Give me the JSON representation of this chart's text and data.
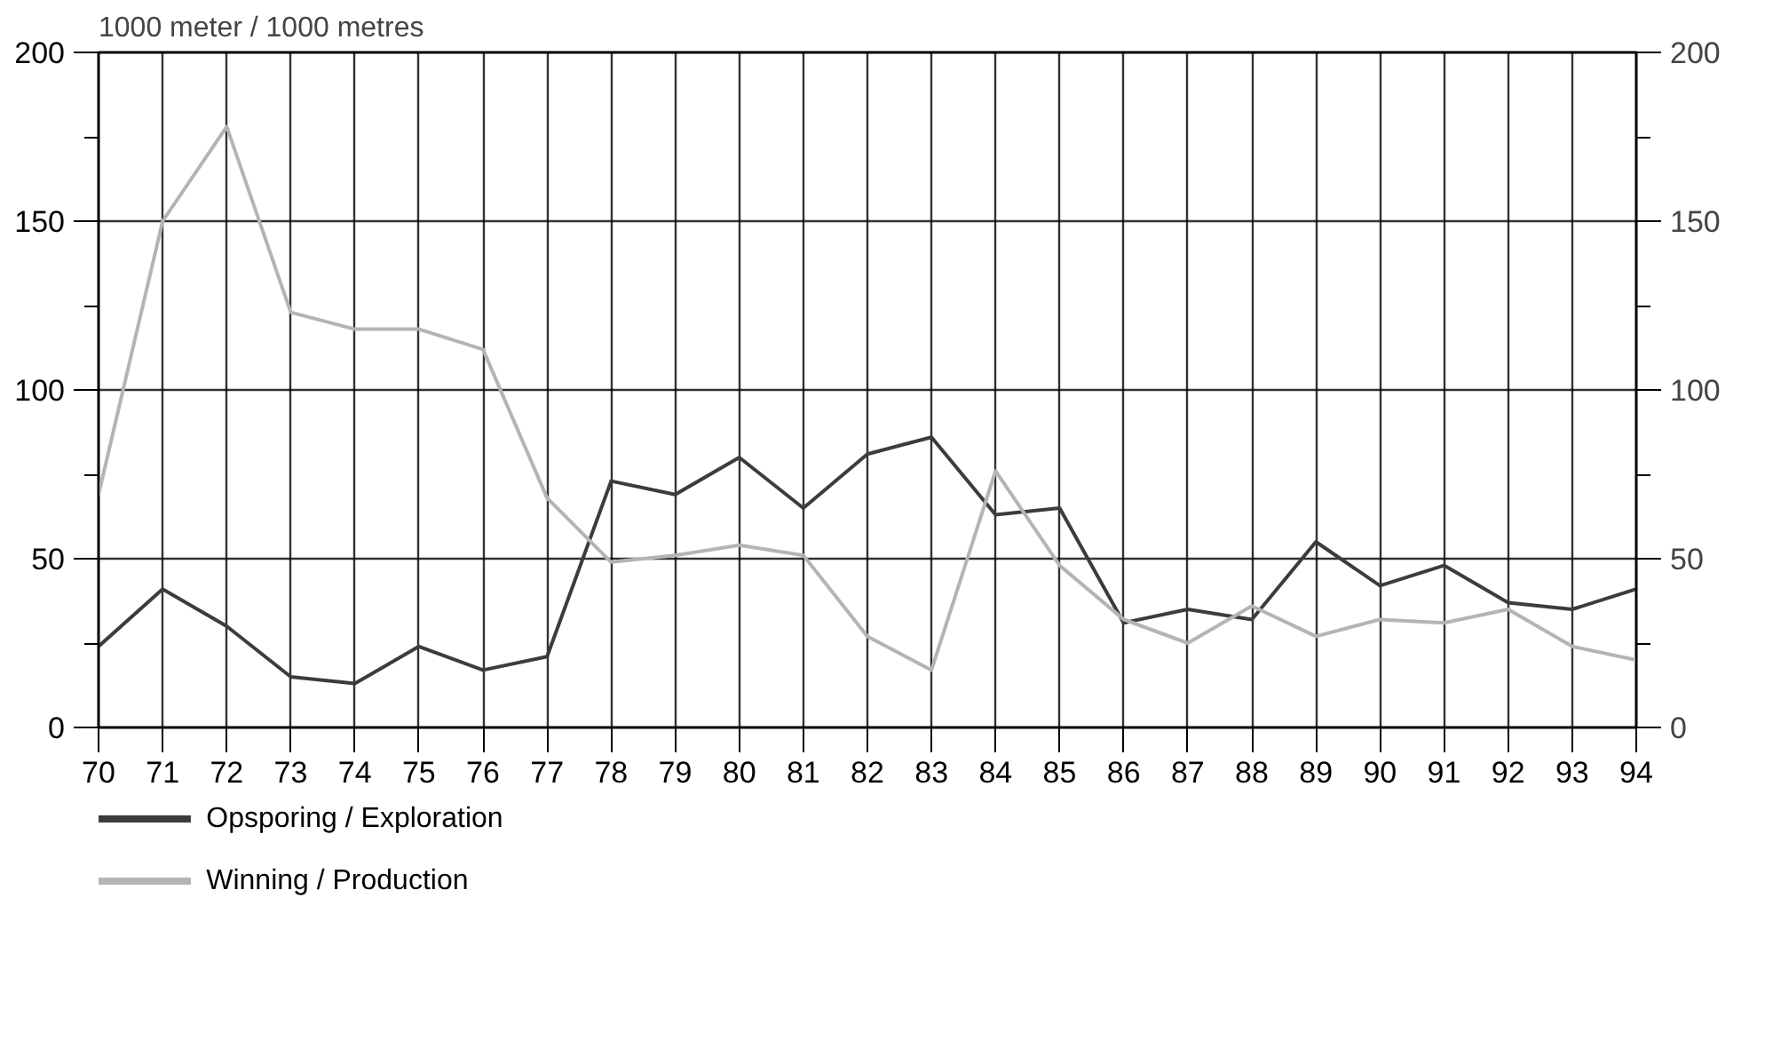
{
  "chart_data": {
    "type": "line",
    "ylabel": "1000 meter / 1000 metres",
    "x": [
      70,
      71,
      72,
      73,
      74,
      75,
      76,
      77,
      78,
      79,
      80,
      81,
      82,
      83,
      84,
      85,
      86,
      87,
      88,
      89,
      90,
      91,
      92,
      93,
      94
    ],
    "series": [
      {
        "name": "Opsporing / Exploration",
        "color": "#3c3c3c",
        "values": [
          24,
          41,
          30,
          15,
          13,
          24,
          17,
          21,
          73,
          69,
          80,
          65,
          81,
          86,
          63,
          65,
          31,
          35,
          32,
          55,
          42,
          48,
          37,
          35,
          41
        ]
      },
      {
        "name": "Winning / Production",
        "color": "#b4b4b4",
        "values": [
          69,
          150,
          178,
          123,
          118,
          118,
          112,
          68,
          49,
          51,
          54,
          51,
          27,
          17,
          76,
          48,
          32,
          25,
          36,
          27,
          32,
          31,
          35,
          24,
          20
        ]
      }
    ],
    "xlim": [
      70,
      94
    ],
    "xticks": [
      70,
      71,
      72,
      73,
      74,
      75,
      76,
      77,
      78,
      79,
      80,
      81,
      82,
      83,
      84,
      85,
      86,
      87,
      88,
      89,
      90,
      91,
      92,
      93,
      94
    ],
    "ylim": [
      0,
      200
    ],
    "yticks": [
      0,
      {
        "value": 25,
        "label": null
      },
      50,
      {
        "value": 75,
        "label": null
      },
      100,
      {
        "value": 125,
        "label": null
      },
      150,
      {
        "value": 175,
        "label": null
      },
      200
    ],
    "y2lim": [
      0,
      200
    ],
    "y2ticks": [
      0,
      {
        "value": 25,
        "label": null
      },
      50,
      {
        "value": 75,
        "label": null
      },
      100,
      {
        "value": 125,
        "label": null
      },
      150,
      {
        "value": 175,
        "label": null
      },
      200
    ],
    "grid": true,
    "legend": "bottom left",
    "marker": "none",
    "line_style": "solid"
  }
}
